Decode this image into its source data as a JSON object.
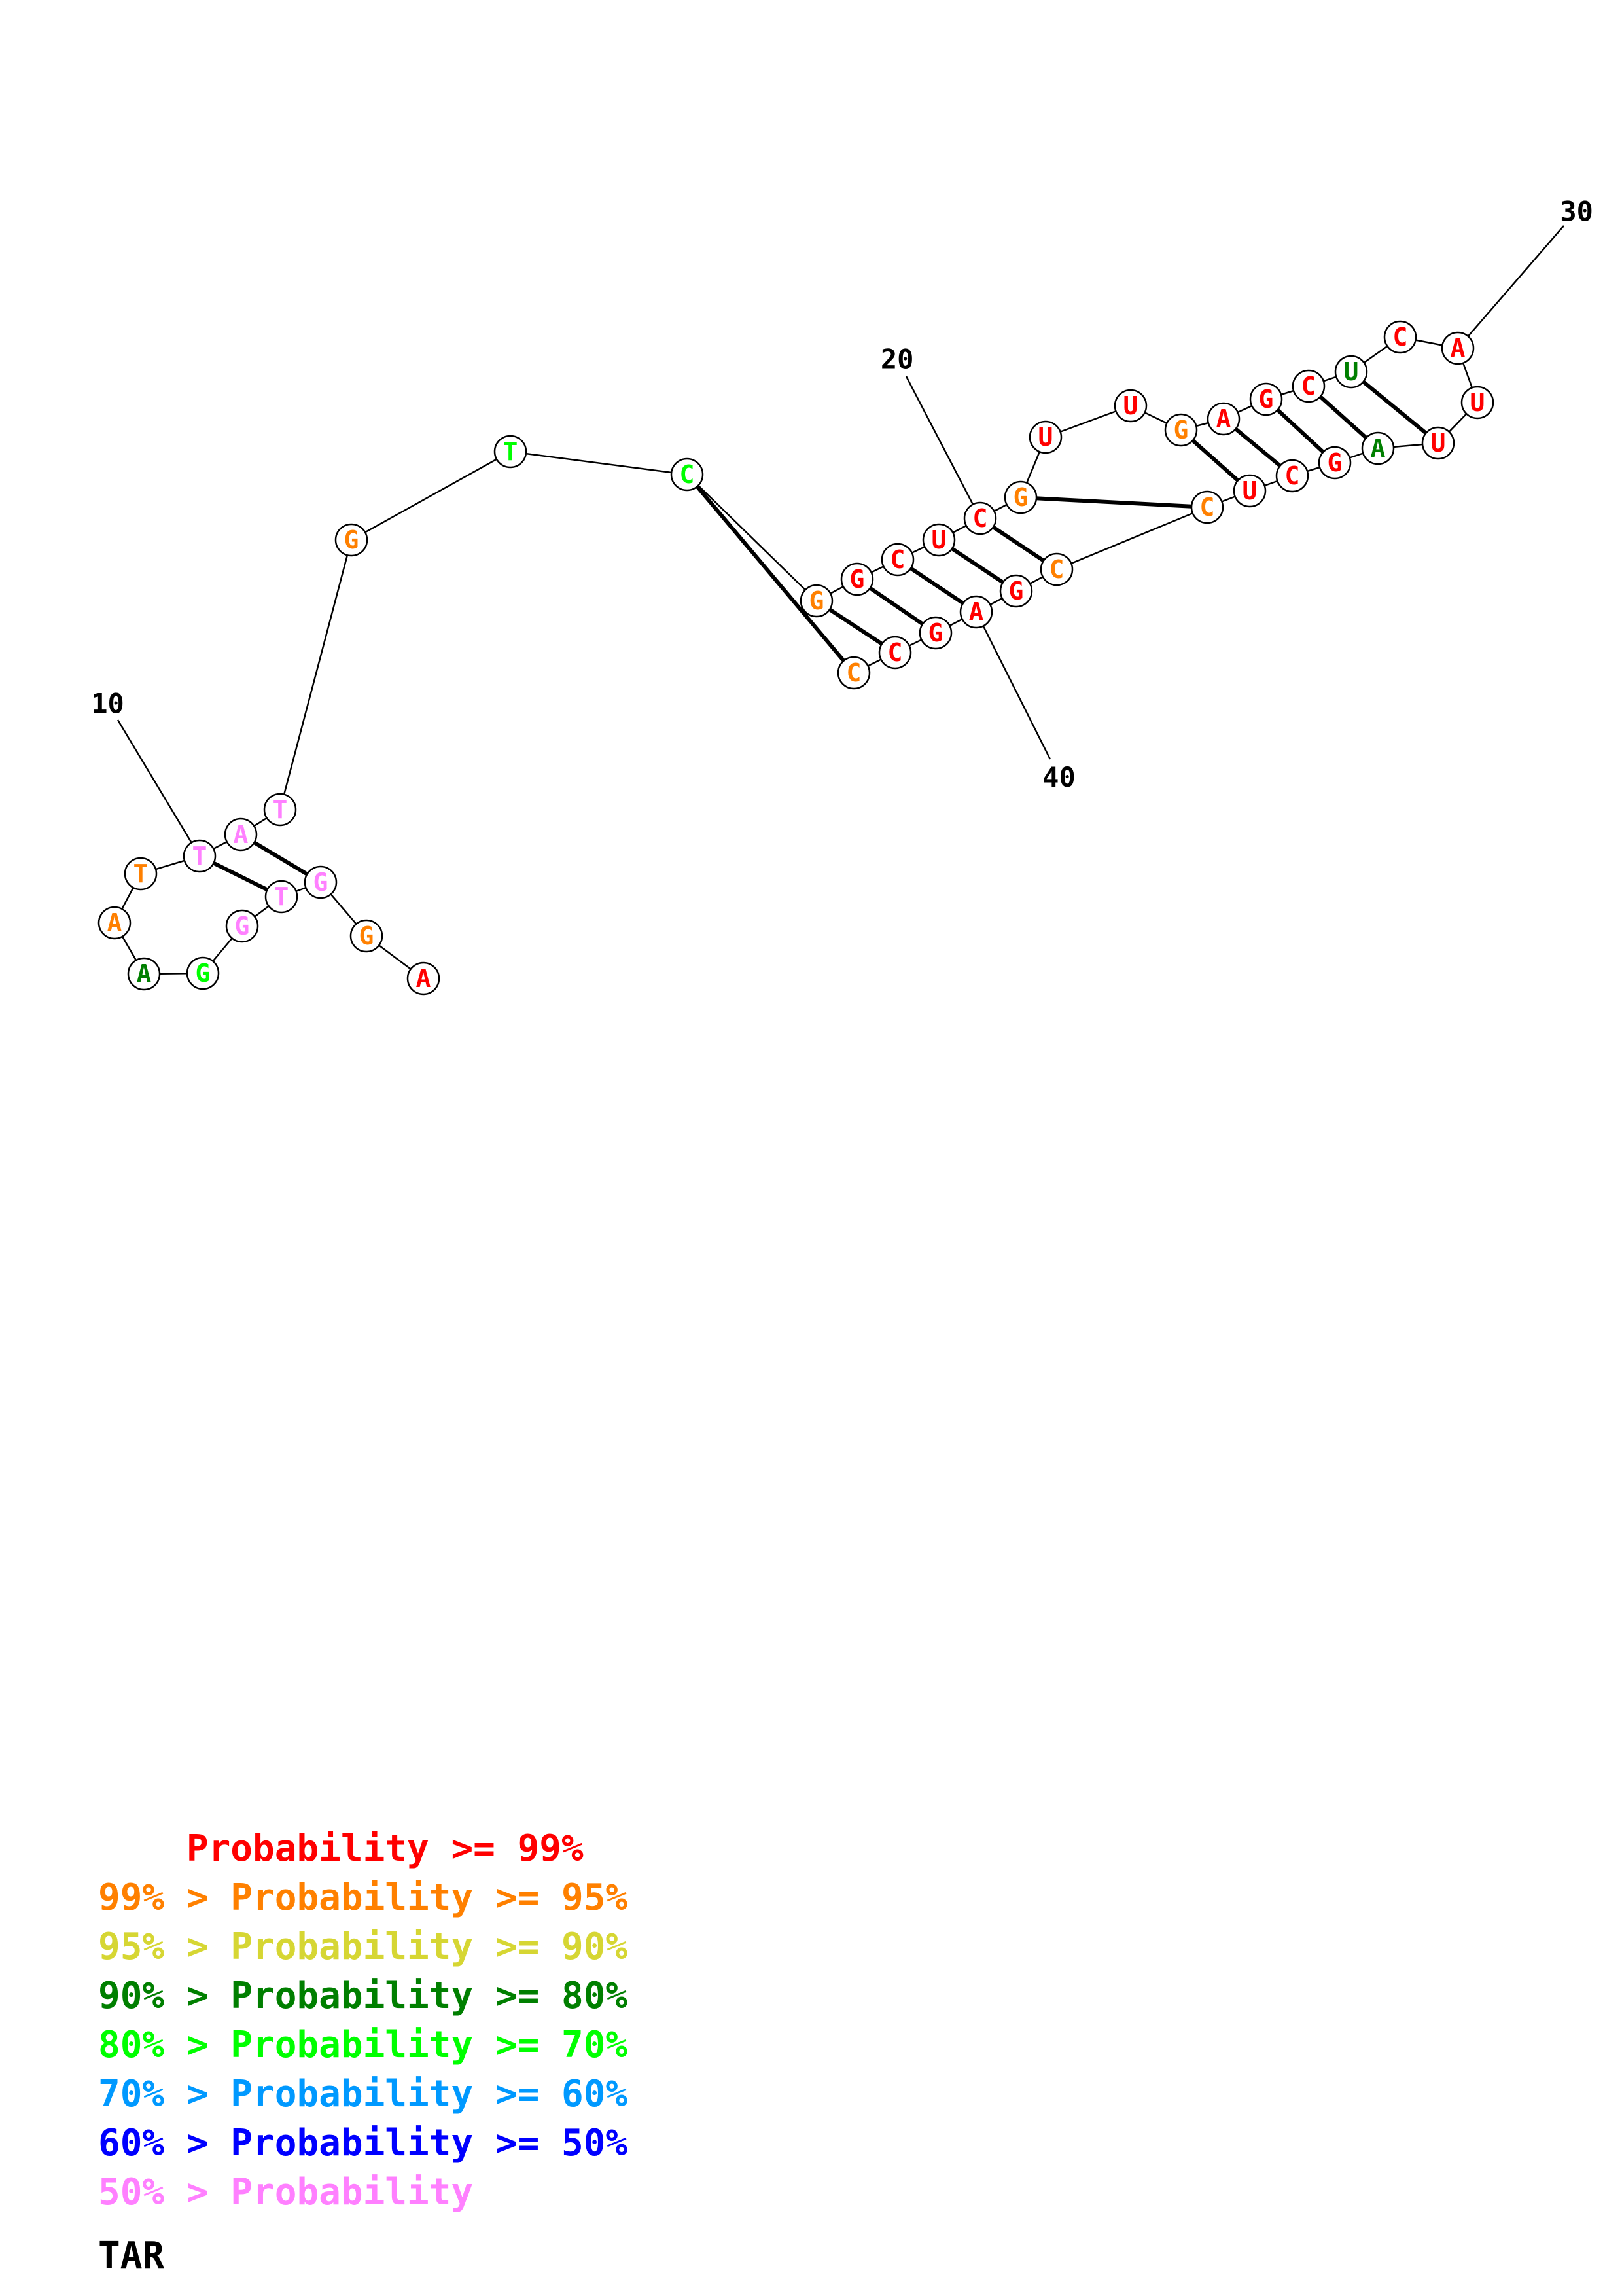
{
  "probability_colors": {
    "p99": "#ff0000",
    "p95": "#ff8000",
    "p90": "#d6d633",
    "p80": "#007f00",
    "p70": "#00ff00",
    "p60": "#0099ff",
    "p50": "#0000ff",
    "low": "#ff80ff"
  },
  "nucleotides": [
    {
      "base": "A",
      "color": "#ff0000"
    },
    {
      "base": "G",
      "color": "#ff8000"
    },
    {
      "base": "G",
      "color": "#ff80ff"
    },
    {
      "base": "T",
      "color": "#ff80ff"
    },
    {
      "base": "G",
      "color": "#ff80ff"
    },
    {
      "base": "G",
      "color": "#00ff00"
    },
    {
      "base": "A",
      "color": "#007f00"
    },
    {
      "base": "A",
      "color": "#ff8000"
    },
    {
      "base": "T",
      "color": "#ff8000"
    },
    {
      "base": "T",
      "color": "#ff80ff"
    },
    {
      "base": "A",
      "color": "#ff80ff"
    },
    {
      "base": "T",
      "color": "#ff80ff"
    },
    {
      "base": "G",
      "color": "#ff8000"
    },
    {
      "base": "T",
      "color": "#00ff00"
    },
    {
      "base": "C",
      "color": "#00ff00"
    },
    {
      "base": "G",
      "color": "#ff8000"
    },
    {
      "base": "G",
      "color": "#ff0000"
    },
    {
      "base": "C",
      "color": "#ff0000"
    },
    {
      "base": "U",
      "color": "#ff0000"
    },
    {
      "base": "C",
      "color": "#ff0000"
    },
    {
      "base": "G",
      "color": "#ff8000"
    },
    {
      "base": "U",
      "color": "#ff0000"
    },
    {
      "base": "U",
      "color": "#ff0000"
    },
    {
      "base": "G",
      "color": "#ff8000"
    },
    {
      "base": "A",
      "color": "#ff0000"
    },
    {
      "base": "G",
      "color": "#ff0000"
    },
    {
      "base": "C",
      "color": "#ff0000"
    },
    {
      "base": "U",
      "color": "#007f00"
    },
    {
      "base": "C",
      "color": "#ff0000"
    },
    {
      "base": "A",
      "color": "#ff0000"
    },
    {
      "base": "U",
      "color": "#ff0000"
    },
    {
      "base": "U",
      "color": "#ff0000"
    },
    {
      "base": "A",
      "color": "#007f00"
    },
    {
      "base": "G",
      "color": "#ff0000"
    },
    {
      "base": "C",
      "color": "#ff0000"
    },
    {
      "base": "U",
      "color": "#ff0000"
    },
    {
      "base": "C",
      "color": "#ff8000"
    },
    {
      "base": "C",
      "color": "#ff8000"
    },
    {
      "base": "G",
      "color": "#ff0000"
    },
    {
      "base": "A",
      "color": "#ff0000"
    },
    {
      "base": "G",
      "color": "#ff0000"
    },
    {
      "base": "C",
      "color": "#ff0000"
    },
    {
      "base": "C",
      "color": "#ff8000"
    }
  ],
  "base_pairs": [
    [
      3,
      11
    ],
    [
      4,
      10
    ],
    [
      15,
      43
    ],
    [
      16,
      42
    ],
    [
      17,
      41
    ],
    [
      18,
      40
    ],
    [
      19,
      39
    ],
    [
      20,
      38
    ],
    [
      21,
      37
    ],
    [
      24,
      36
    ],
    [
      25,
      35
    ],
    [
      26,
      34
    ],
    [
      27,
      33
    ],
    [
      28,
      32
    ]
  ],
  "position_labels": [
    {
      "index": 10,
      "text": "10"
    },
    {
      "index": 20,
      "text": "20"
    },
    {
      "index": 30,
      "text": "30"
    },
    {
      "index": 40,
      "text": "40"
    }
  ],
  "legend": [
    {
      "prefix": "    ",
      "text": "Probability >= 99%",
      "color": "#ff0000"
    },
    {
      "prefix": "99% > ",
      "text": "Probability >= 95%",
      "color": "#ff8000"
    },
    {
      "prefix": "95% > ",
      "text": "Probability >= 90%",
      "color": "#d6d633"
    },
    {
      "prefix": "90% > ",
      "text": "Probability >= 80%",
      "color": "#007f00"
    },
    {
      "prefix": "80% > ",
      "text": "Probability >= 70%",
      "color": "#00ff00"
    },
    {
      "prefix": "70% > ",
      "text": "Probability >= 60%",
      "color": "#0099ff"
    },
    {
      "prefix": "60% > ",
      "text": "Probability >= 50%",
      "color": "#0000ff"
    },
    {
      "prefix": "50% > ",
      "text": "Probability",
      "color": "#ff80ff"
    }
  ],
  "sequence_name": "TAR"
}
